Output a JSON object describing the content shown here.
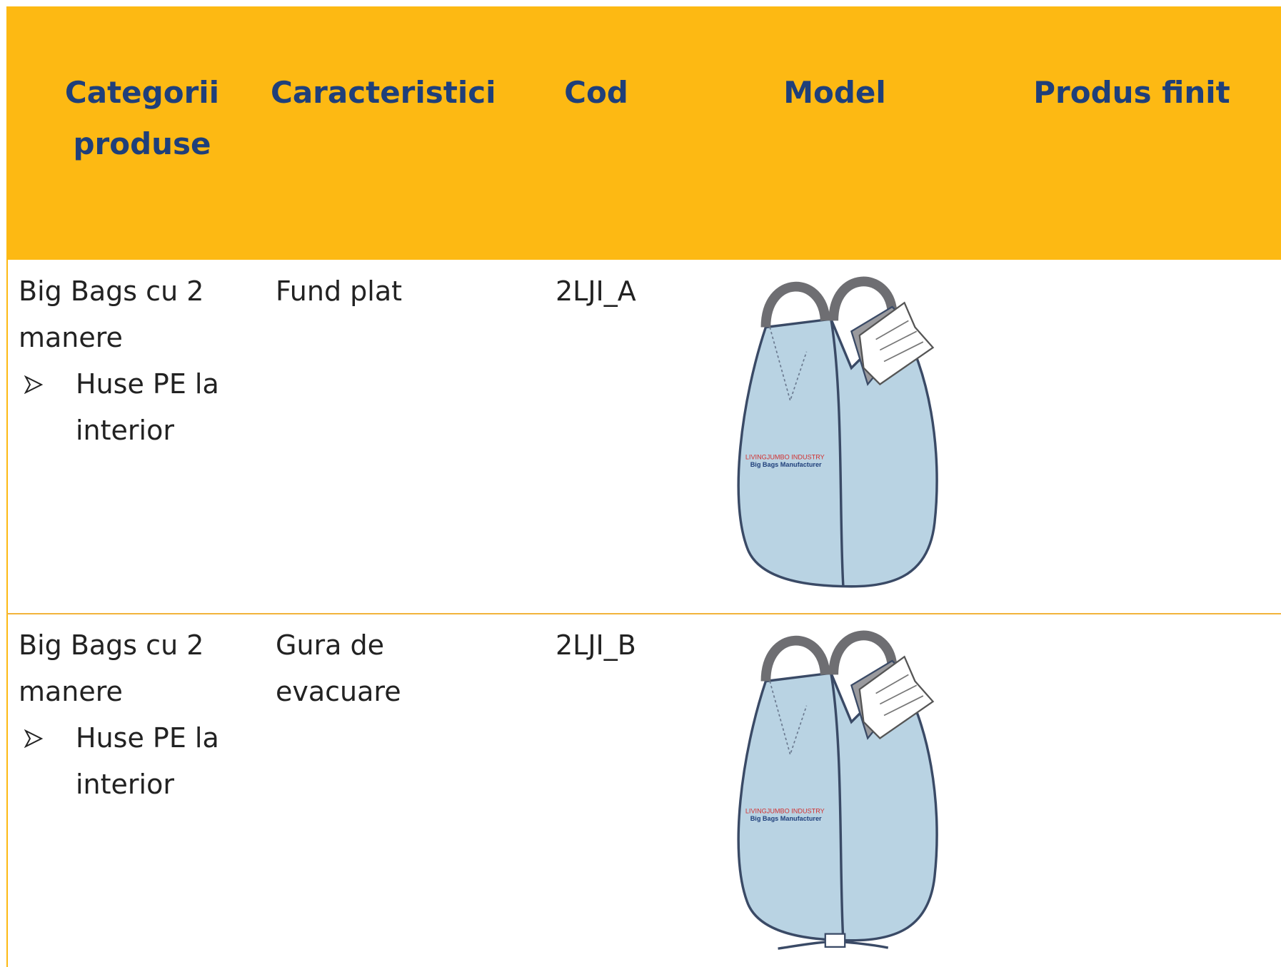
{
  "table": {
    "header": [
      "Categorii produse",
      "Caracteristici",
      "Cod",
      "Model",
      "Produs finit"
    ],
    "rows": [
      {
        "category": "Big Bags cu 2 manere",
        "bullet": "Huse PE la interior",
        "feature": "Fund plat",
        "code": "2LJI_A",
        "model_label": [
          "LIVINGJUMBO INDUSTRY",
          "Big Bags Manufacturer"
        ]
      },
      {
        "category": "Big Bags cu 2 manere",
        "bullet": "Huse PE la interior",
        "feature": "Gura de evacuare",
        "code": "2LJI_B",
        "model_label": [
          "LIVINGJUMBO INDUSTRY",
          "Big Bags Manufacturer"
        ]
      }
    ]
  }
}
